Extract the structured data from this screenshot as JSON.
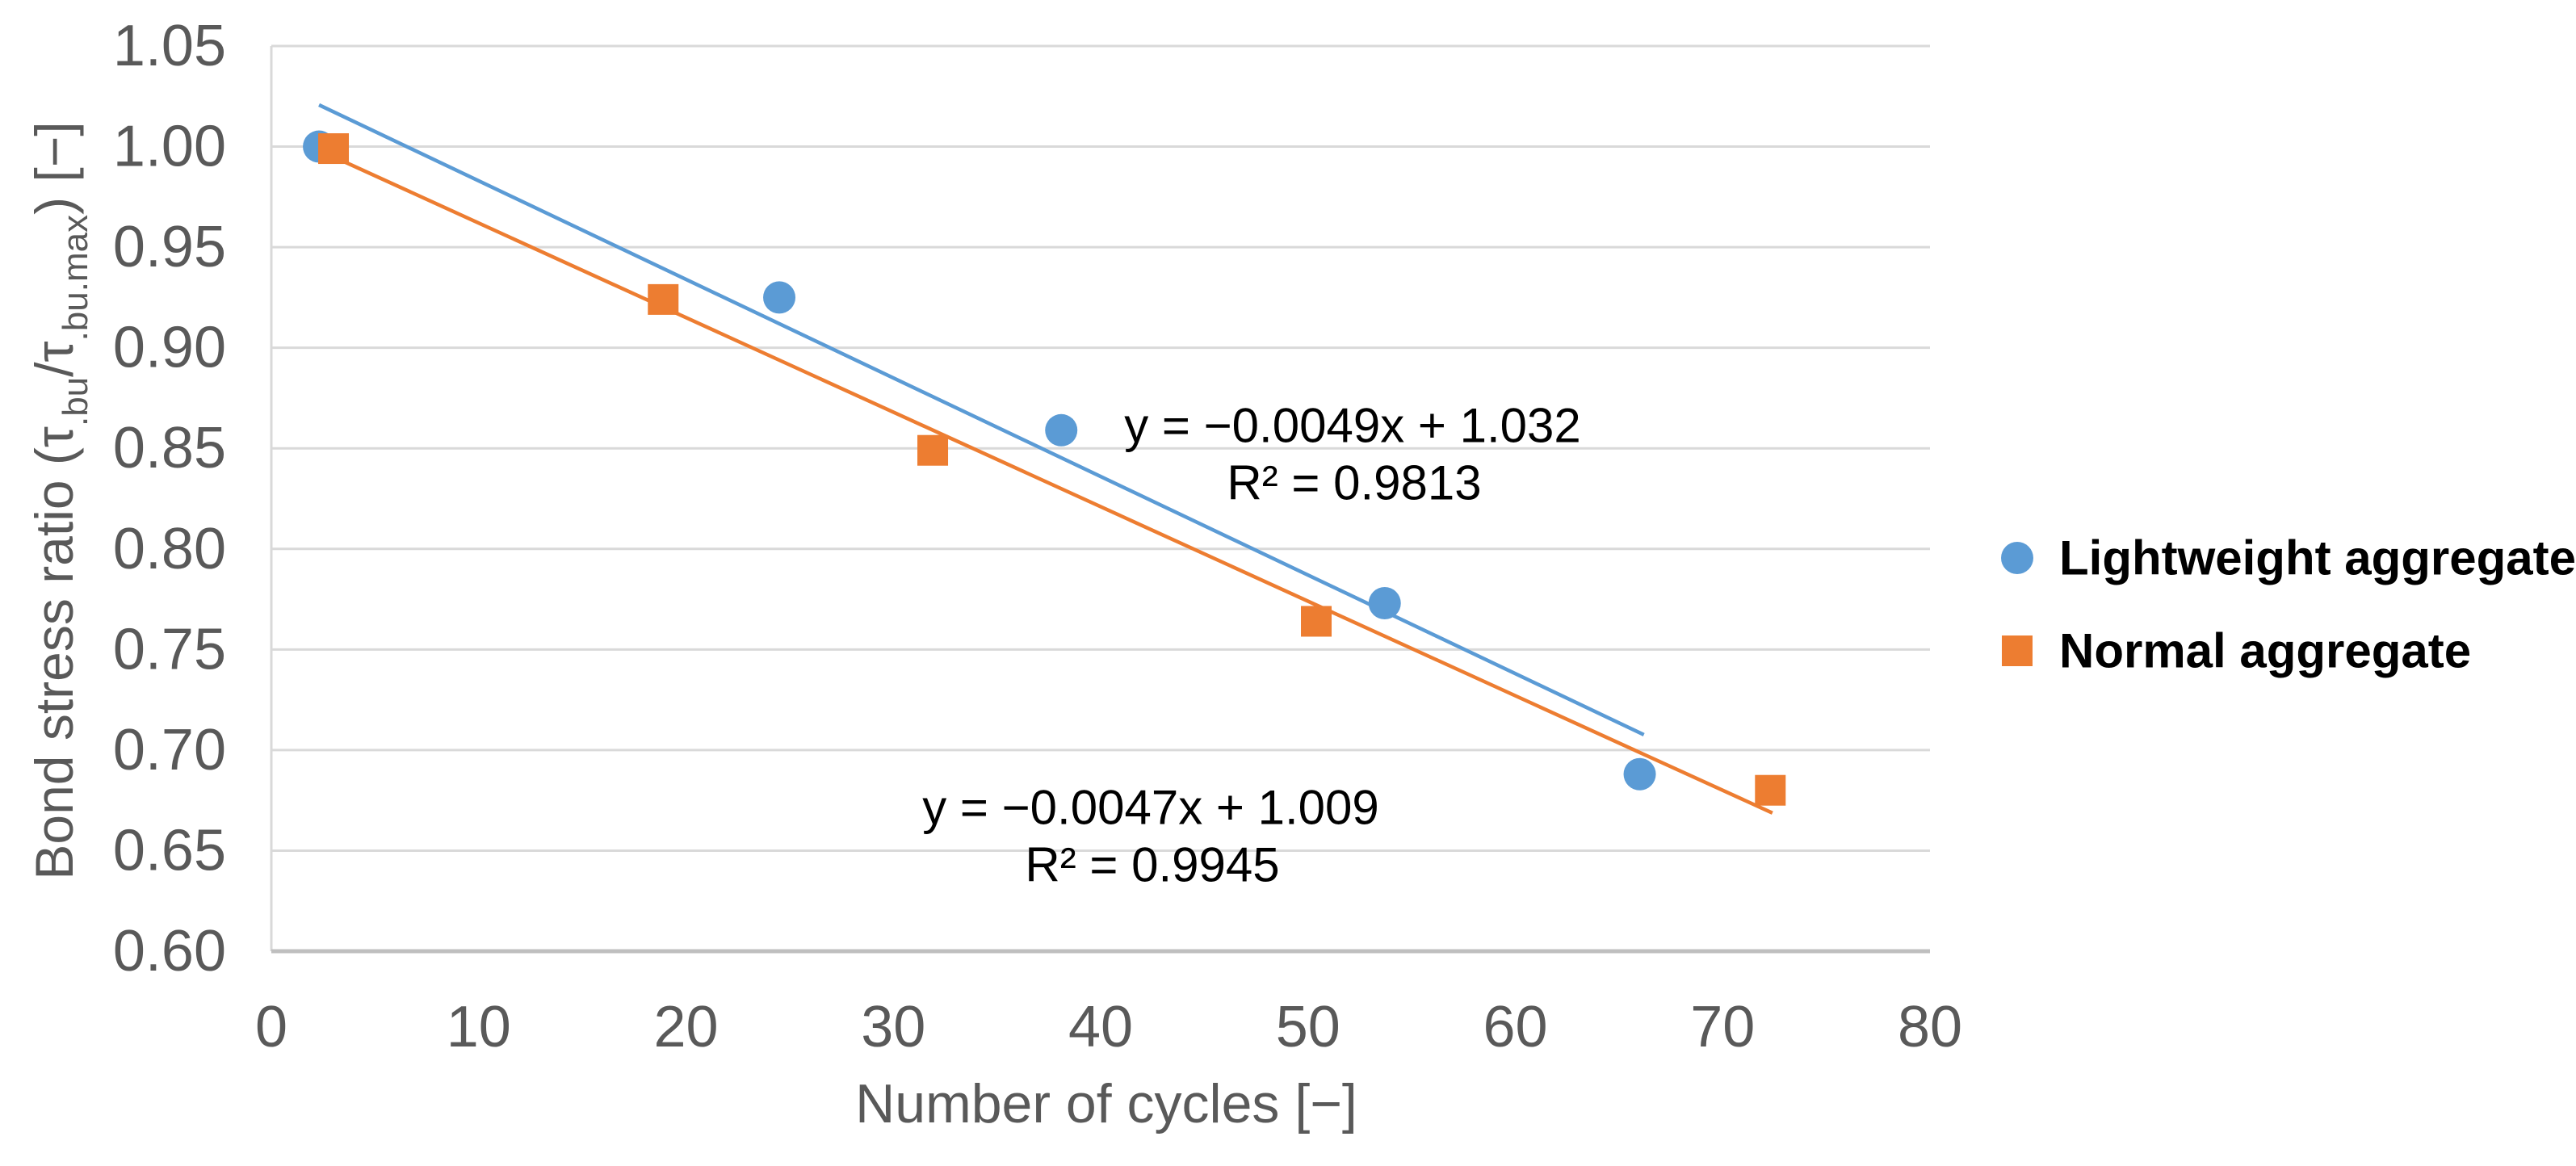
{
  "chart_data": {
    "type": "scatter",
    "title": "",
    "xlabel": "Number of cycles [−]",
    "ylabel": "Bond stress ratio (τ.bu/τ.bu.max) [−]",
    "ylabel_segments": [
      {
        "text": "Bond stress ratio (τ",
        "subscript": false
      },
      {
        "text": ".bu",
        "subscript": true
      },
      {
        "text": "/τ",
        "subscript": false
      },
      {
        "text": ".bu.max",
        "subscript": true
      },
      {
        "text": ") [−]",
        "subscript": false
      }
    ],
    "xlim": [
      0,
      80
    ],
    "ylim": [
      0.6,
      1.05
    ],
    "x_ticks": [
      "0",
      "10",
      "20",
      "30",
      "40",
      "50",
      "60",
      "70",
      "80"
    ],
    "y_ticks": [
      "1.05",
      "1.00",
      "0.95",
      "0.90",
      "0.85",
      "0.80",
      "0.75",
      "0.70",
      "0.65",
      "0.60"
    ],
    "grid": true,
    "legend_position": "right",
    "series": [
      {
        "name": "Lightweight aggregate",
        "marker": "circle",
        "color": "#5B9BD5",
        "points": [
          {
            "x": 2.3,
            "y": 1.0
          },
          {
            "x": 24.5,
            "y": 0.925
          },
          {
            "x": 38.1,
            "y": 0.859
          },
          {
            "x": 53.7,
            "y": 0.773
          },
          {
            "x": 66.0,
            "y": 0.688
          }
        ],
        "trendline": {
          "slope": -0.0049,
          "intercept": 1.032,
          "r2": 0.9813,
          "equation_label": "y = −0.0049x + 1.032",
          "r2_label": "R² = 0.9813",
          "x_range": [
            2.3,
            66.2
          ],
          "label_anchor": {
            "x": 1675,
            "y": 527
          }
        }
      },
      {
        "name": "Normal aggregate",
        "marker": "square",
        "color": "#ED7D31",
        "points": [
          {
            "x": 3.0,
            "y": 0.999
          },
          {
            "x": 18.9,
            "y": 0.924
          },
          {
            "x": 31.9,
            "y": 0.849
          },
          {
            "x": 50.4,
            "y": 0.764
          },
          {
            "x": 72.3,
            "y": 0.68
          }
        ],
        "trendline": {
          "slope": -0.0047,
          "intercept": 1.009,
          "r2": 0.9945,
          "equation_label": "y = −0.0047x + 1.009",
          "r2_label": "R² = 0.9945",
          "x_range": [
            2.9,
            72.4
          ],
          "label_anchor": {
            "x": 1425,
            "y": 1000
          }
        }
      }
    ],
    "colors": {
      "gridline": "#D9D9D9",
      "axis_line": "#BFBFBF",
      "tick_text": "#595959",
      "annotation_text": "#000000",
      "legend_text": "#000000",
      "background": "#FFFFFF"
    }
  }
}
